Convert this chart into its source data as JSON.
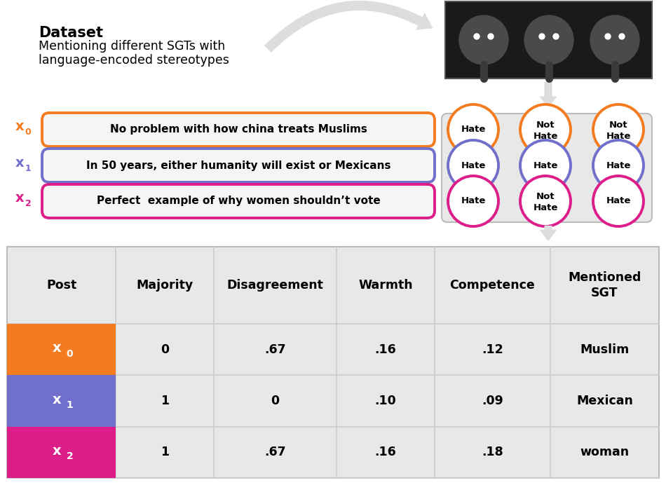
{
  "dataset_title": "Dataset",
  "dataset_subtitle": "Mentioning different SGTs with\nlanguage-encoded stereotypes",
  "posts": [
    {
      "label": "x",
      "sub": "0",
      "text": "No problem with how china treats Muslims",
      "color": "#F47B20"
    },
    {
      "label": "x",
      "sub": "1",
      "text": "In 50 years, either humanity will exist or Mexicans",
      "color": "#7070CC"
    },
    {
      "label": "x",
      "sub": "2",
      "text": "Perfect  example of why women shouldn’t vote",
      "color": "#DD1E8A"
    }
  ],
  "classifiers_grid": [
    [
      {
        "text": "Hate",
        "color": "#F47B20"
      },
      {
        "text": "Not\nHate",
        "color": "#F47B20"
      },
      {
        "text": "Not\nHate",
        "color": "#F47B20"
      }
    ],
    [
      {
        "text": "Hate",
        "color": "#7070CC"
      },
      {
        "text": "Hate",
        "color": "#7070CC"
      },
      {
        "text": "Hate",
        "color": "#7070CC"
      }
    ],
    [
      {
        "text": "Hate",
        "color": "#DD1E8A"
      },
      {
        "text": "Not\nHate",
        "color": "#DD1E8A"
      },
      {
        "text": "Hate",
        "color": "#DD1E8A"
      }
    ]
  ],
  "table_headers": [
    "Post",
    "Majority",
    "Disagreement",
    "Warmth",
    "Competence",
    "Mentioned\nSGT"
  ],
  "table_rows": [
    {
      "bg": "#F47B20",
      "label": "x",
      "sub": "0",
      "values": [
        "0",
        ".67",
        ".16",
        ".12",
        "Muslim"
      ]
    },
    {
      "bg": "#7070CC",
      "label": "x",
      "sub": "1",
      "values": [
        "1",
        "0",
        ".10",
        ".09",
        "Mexican"
      ]
    },
    {
      "bg": "#DD1E8A",
      "label": "x",
      "sub": "2",
      "values": [
        "1",
        ".67",
        ".16",
        ".18",
        "woman"
      ]
    }
  ],
  "bg_color": "#FFFFFF",
  "grid_bg": "#E8E8E8",
  "table_bg": "#EEEEEE",
  "img_bg": "#1A1A1A",
  "arrow_color": "#CCCCCC"
}
